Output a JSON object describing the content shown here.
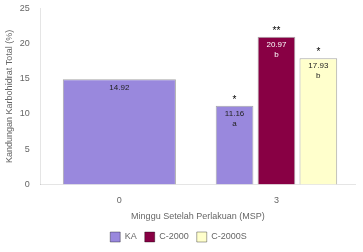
{
  "chart_data": {
    "type": "bar",
    "x_label": "Minggu Setelah Perlakuan (MSP)",
    "y_label": "Kandungan Karbohidrat Total (%)",
    "categories": [
      "0",
      "3"
    ],
    "series": [
      {
        "name": "KA",
        "color": "#9988dd",
        "values": [
          14.92,
          11.16
        ],
        "value_labels": [
          "14.92",
          "11.16\na"
        ]
      },
      {
        "name": "C-2000",
        "color": "#880044",
        "values": [
          null,
          20.97
        ],
        "value_labels": [
          null,
          "20.97\nb"
        ]
      },
      {
        "name": "C-2000S",
        "color": "#ffffcc",
        "values": [
          null,
          17.93
        ],
        "value_labels": [
          null,
          "17.93\nb"
        ]
      }
    ],
    "annotations": [
      {
        "series": "KA",
        "category": "3",
        "text": "*"
      },
      {
        "series": "C-2000",
        "category": "3",
        "text": "**"
      },
      {
        "series": "C-2000S",
        "category": "3",
        "text": "*"
      }
    ],
    "data_labels": true,
    "ylim": [
      0,
      25
    ],
    "yticks": [
      0,
      5,
      10,
      15,
      20,
      25
    ],
    "grid": false,
    "legend": "bottom"
  }
}
